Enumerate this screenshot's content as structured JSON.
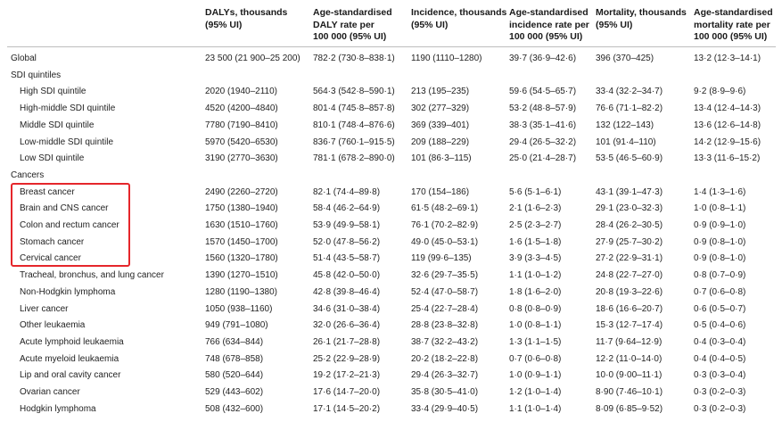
{
  "headers": [
    {
      "line1": "DALYs, thousands",
      "line2": "(95% UI)",
      "line3": ""
    },
    {
      "line1": "Age-standardised",
      "line2": "DALY rate per",
      "line3": "100 000 (95% UI)"
    },
    {
      "line1": "Incidence, thousands",
      "line2": "(95% UI)",
      "line3": ""
    },
    {
      "line1": "Age-standardised",
      "line2": "incidence rate per",
      "line3": "100 000 (95% UI)"
    },
    {
      "line1": "Mortality, thousands",
      "line2": "(95% UI)",
      "line3": ""
    },
    {
      "line1": "Age-standardised",
      "line2": "mortality rate per",
      "line3": "100 000 (95% UI)"
    }
  ],
  "rows": [
    {
      "label": "Global",
      "indent": false,
      "cells": [
        "23 500 (21 900–25 200)",
        "782·2 (730·8–838·1)",
        "1190 (1110–1280)",
        "39·7 (36·9–42·6)",
        "396 (370–425)",
        "13·2 (12·3–14·1)"
      ]
    },
    {
      "label": "SDI quintiles",
      "indent": false,
      "cells": [
        "",
        "",
        "",
        "",
        "",
        ""
      ]
    },
    {
      "label": "High SDI quintile",
      "indent": true,
      "cells": [
        "2020 (1940–2110)",
        "564·3 (542·8–590·1)",
        "213 (195–235)",
        "59·6 (54·5–65·7)",
        "33·4 (32·2–34·7)",
        "9·2 (8·9–9·6)"
      ]
    },
    {
      "label": "High-middle SDI quintile",
      "indent": true,
      "cells": [
        "4520 (4200–4840)",
        "801·4 (745·8–857·8)",
        "302 (277–329)",
        "53·2 (48·8–57·9)",
        "76·6 (71·1–82·2)",
        "13·4 (12·4–14·3)"
      ]
    },
    {
      "label": "Middle SDI quintile",
      "indent": true,
      "cells": [
        "7780 (7190–8410)",
        "810·1 (748·4–876·6)",
        "369 (339–401)",
        "38·3 (35·1–41·6)",
        "132 (122–143)",
        "13·6 (12·6–14·8)"
      ]
    },
    {
      "label": "Low-middle SDI quintile",
      "indent": true,
      "cells": [
        "5970 (5420–6530)",
        "836·7 (760·1–915·5)",
        "209 (188–229)",
        "29·4 (26·5–32·2)",
        "101 (91·4–110)",
        "14·2 (12·9–15·6)"
      ]
    },
    {
      "label": "Low SDI quintile",
      "indent": true,
      "cells": [
        "3190 (2770–3630)",
        "781·1 (678·2–890·0)",
        "101 (86·3–115)",
        "25·0 (21·4–28·7)",
        "53·5 (46·5–60·9)",
        "13·3 (11·6–15·2)"
      ]
    },
    {
      "label": "Cancers",
      "indent": false,
      "cells": [
        "",
        "",
        "",
        "",
        "",
        ""
      ]
    },
    {
      "label": "Breast cancer",
      "indent": true,
      "cells": [
        "2490 (2260–2720)",
        "82·1 (74·4–89·8)",
        "170 (154–186)",
        "5·6 (5·1–6·1)",
        "43·1 (39·1–47·3)",
        "1·4 (1·3–1·6)"
      ]
    },
    {
      "label": "Brain and CNS cancer",
      "indent": true,
      "cells": [
        "1750 (1380–1940)",
        "58·4 (46·2–64·9)",
        "61·5 (48·2–69·1)",
        "2·1 (1·6–2·3)",
        "29·1 (23·0–32·3)",
        "1·0 (0·8–1·1)"
      ]
    },
    {
      "label": "Colon and rectum cancer",
      "indent": true,
      "cells": [
        "1630 (1510–1760)",
        "53·9 (49·9–58·1)",
        "76·1 (70·2–82·9)",
        "2·5 (2·3–2·7)",
        "28·4 (26·2–30·5)",
        "0·9 (0·9–1·0)"
      ]
    },
    {
      "label": "Stomach cancer",
      "indent": true,
      "cells": [
        "1570 (1450–1700)",
        "52·0 (47·8–56·2)",
        "49·0 (45·0–53·1)",
        "1·6 (1·5–1·8)",
        "27·9 (25·7–30·2)",
        "0·9 (0·8–1·0)"
      ]
    },
    {
      "label": "Cervical cancer",
      "indent": true,
      "cells": [
        "1560 (1320–1780)",
        "51·4 (43·5–58·7)",
        "119 (99·6–135)",
        "3·9 (3·3–4·5)",
        "27·2 (22·9–31·1)",
        "0·9 (0·8–1·0)"
      ]
    },
    {
      "label": "Tracheal, bronchus, and lung cancer",
      "indent": true,
      "cells": [
        "1390 (1270–1510)",
        "45·8 (42·0–50·0)",
        "32·6 (29·7–35·5)",
        "1·1 (1·0–1·2)",
        "24·8 (22·7–27·0)",
        "0·8 (0·7–0·9)"
      ]
    },
    {
      "label": "Non-Hodgkin lymphoma",
      "indent": true,
      "cells": [
        "1280 (1190–1380)",
        "42·8 (39·8–46·4)",
        "52·4 (47·0–58·7)",
        "1·8 (1·6–2·0)",
        "20·8 (19·3–22·6)",
        "0·7 (0·6–0·8)"
      ]
    },
    {
      "label": "Liver cancer",
      "indent": true,
      "cells": [
        "1050 (938–1160)",
        "34·6 (31·0–38·4)",
        "25·4 (22·7–28·4)",
        "0·8 (0·8–0·9)",
        "18·6 (16·6–20·7)",
        "0·6 (0·5–0·7)"
      ]
    },
    {
      "label": "Other leukaemia",
      "indent": true,
      "cells": [
        "949 (791–1080)",
        "32·0 (26·6–36·4)",
        "28·8 (23·8–32·8)",
        "1·0 (0·8–1·1)",
        "15·3 (12·7–17·4)",
        "0·5 (0·4–0·6)"
      ]
    },
    {
      "label": "Acute lymphoid leukaemia",
      "indent": true,
      "cells": [
        "766 (634–844)",
        "26·1 (21·7–28·8)",
        "38·7 (32·2–43·2)",
        "1·3 (1·1–1·5)",
        "11·7 (9·64–12·9)",
        "0·4 (0·3–0·4)"
      ]
    },
    {
      "label": "Acute myeloid leukaemia",
      "indent": true,
      "cells": [
        "748 (678–858)",
        "25·2 (22·9–28·9)",
        "20·2 (18·2–22·8)",
        "0·7 (0·6–0·8)",
        "12·2 (11·0–14·0)",
        "0·4 (0·4–0·5)"
      ]
    },
    {
      "label": "Lip and oral cavity cancer",
      "indent": true,
      "cells": [
        "580 (520–644)",
        "19·2 (17·2–21·3)",
        "29·4 (26·3–32·7)",
        "1·0 (0·9–1·1)",
        "10·0 (9·00–11·1)",
        "0·3 (0·3–0·4)"
      ]
    },
    {
      "label": "Ovarian cancer",
      "indent": true,
      "cells": [
        "529 (443–602)",
        "17·6 (14·7–20·0)",
        "35·8 (30·5–41·0)",
        "1·2 (1·0–1·4)",
        "8·90 (7·46–10·1)",
        "0·3 (0·2–0·3)"
      ]
    },
    {
      "label": "Hodgkin lymphoma",
      "indent": true,
      "cells": [
        "508 (432–600)",
        "17·1 (14·5–20·2)",
        "33·4 (29·9–40·5)",
        "1·1 (1·0–1·4)",
        "8·09 (6·85–9·52)",
        "0·3 (0·2–0·3)"
      ]
    }
  ]
}
